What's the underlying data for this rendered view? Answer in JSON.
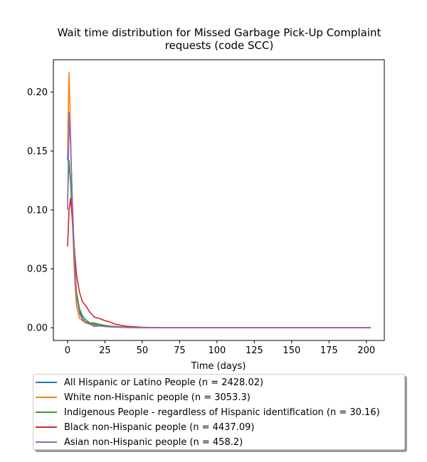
{
  "chart_data": {
    "type": "line",
    "title_line1": "Wait time distribution  for Missed Garbage Pick-Up Complaint",
    "title_line2": "requests (code SCC)",
    "xlabel": "Time (days)",
    "ylabel": "",
    "xlim": [
      -9.5,
      212
    ],
    "ylim": [
      -0.0108,
      0.2275
    ],
    "xticks": [
      0,
      25,
      50,
      75,
      100,
      125,
      150,
      175,
      200
    ],
    "yticks": [
      0.0,
      0.05,
      0.1,
      0.15,
      0.2
    ],
    "ytick_labels": [
      "0.00",
      "0.05",
      "0.10",
      "0.15",
      "0.20"
    ],
    "grid": false,
    "legend_placement": "below",
    "series": [
      {
        "name": "All Hispanic or Latino People (n = 2428.02)",
        "color": "#1f77b4",
        "x": [
          0,
          1,
          2,
          3,
          4,
          5,
          6,
          8,
          10,
          12,
          15,
          18,
          21,
          25,
          30,
          35,
          40,
          50,
          60,
          80,
          203
        ],
        "y": [
          0.142,
          0.18,
          0.155,
          0.115,
          0.08,
          0.05,
          0.028,
          0.014,
          0.008,
          0.005,
          0.004,
          0.003,
          0.002,
          0.0015,
          0.0008,
          0.0005,
          0.0003,
          0.0001,
          0.0,
          0.0,
          0.0
        ]
      },
      {
        "name": "White non-Hispanic people (n = 3053.3)",
        "color": "#ff7f0e",
        "x": [
          0,
          1,
          2,
          3,
          4,
          5,
          6,
          8,
          10,
          12,
          15,
          18,
          21,
          25,
          30,
          35,
          40,
          50,
          60,
          80,
          203
        ],
        "y": [
          0.15,
          0.217,
          0.165,
          0.105,
          0.065,
          0.035,
          0.018,
          0.008,
          0.006,
          0.004,
          0.003,
          0.002,
          0.0015,
          0.001,
          0.0006,
          0.0004,
          0.0002,
          0.0001,
          0.0,
          0.0,
          0.0
        ]
      },
      {
        "name": "Indigenous People - regardless of Hispanic identification (n = 30.16)",
        "color": "#2ca02c",
        "x": [
          0,
          1,
          2,
          3,
          4,
          5,
          6,
          8,
          10,
          12,
          15,
          18,
          21,
          25,
          30,
          35,
          40,
          50,
          60,
          80,
          203
        ],
        "y": [
          0.109,
          0.142,
          0.124,
          0.098,
          0.072,
          0.047,
          0.03,
          0.016,
          0.01,
          0.007,
          0.004,
          0.004,
          0.003,
          0.002,
          0.0012,
          0.0008,
          0.0005,
          0.0002,
          0.0,
          0.0,
          0.0
        ]
      },
      {
        "name": "Black non-Hispanic people (n = 4437.09)",
        "color": "#d62728",
        "x": [
          0,
          1,
          2,
          3,
          4,
          5,
          6,
          8,
          10,
          12,
          15,
          18,
          21,
          25,
          28,
          32,
          36,
          40,
          45,
          50,
          60,
          80,
          203
        ],
        "y": [
          0.069,
          0.1,
          0.11,
          0.095,
          0.078,
          0.06,
          0.045,
          0.03,
          0.022,
          0.019,
          0.013,
          0.009,
          0.008,
          0.006,
          0.005,
          0.003,
          0.002,
          0.0012,
          0.0008,
          0.0004,
          0.0,
          0.0,
          0.0
        ]
      },
      {
        "name": "Asian non-Hispanic people (n = 458.2)",
        "color": "#9467bd",
        "x": [
          0,
          1,
          2,
          3,
          4,
          5,
          6,
          8,
          10,
          12,
          15,
          18,
          21,
          25,
          30,
          35,
          40,
          50,
          60,
          80,
          203
        ],
        "y": [
          0.1,
          0.183,
          0.16,
          0.115,
          0.078,
          0.048,
          0.026,
          0.012,
          0.007,
          0.005,
          0.003,
          0.001,
          0.0015,
          0.001,
          0.0006,
          0.0004,
          0.0002,
          0.0001,
          0.0,
          0.0,
          0.0
        ]
      }
    ]
  }
}
